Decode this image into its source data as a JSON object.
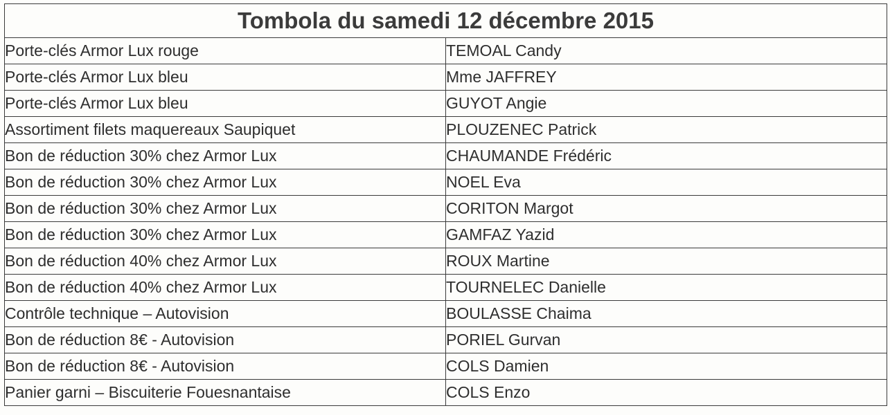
{
  "title": "Tombola du samedi 12 décembre 2015",
  "rows": [
    {
      "prize": "Porte-clés Armor Lux rouge",
      "winner": "TEMOAL Candy"
    },
    {
      "prize": "Porte-clés Armor Lux bleu",
      "winner": "Mme JAFFREY"
    },
    {
      "prize": "Porte-clés Armor Lux bleu",
      "winner": "GUYOT Angie"
    },
    {
      "prize": "Assortiment filets maquereaux Saupiquet",
      "winner": "PLOUZENEC Patrick"
    },
    {
      "prize": "Bon de réduction 30% chez Armor Lux",
      "winner": "CHAUMANDE Frédéric"
    },
    {
      "prize": "Bon de réduction 30% chez Armor Lux",
      "winner": "NOEL Eva"
    },
    {
      "prize": "Bon de réduction 30% chez Armor Lux",
      "winner": "CORITON Margot"
    },
    {
      "prize": "Bon de réduction 30% chez Armor Lux",
      "winner": "GAMFAZ Yazid"
    },
    {
      "prize": "Bon de réduction 40% chez Armor Lux",
      "winner": "ROUX Martine"
    },
    {
      "prize": "Bon de réduction 40% chez Armor Lux",
      "winner": "TOURNELEC Danielle"
    },
    {
      "prize": "Contrôle technique – Autovision",
      "winner": "BOULASSE Chaima"
    },
    {
      "prize": "Bon de réduction 8€ - Autovision",
      "winner": "PORIEL Gurvan"
    },
    {
      "prize": "Bon de réduction 8€ - Autovision",
      "winner": "COLS Damien"
    },
    {
      "prize": "Panier garni – Biscuiterie Fouesnantaise",
      "winner": "COLS Enzo"
    }
  ]
}
